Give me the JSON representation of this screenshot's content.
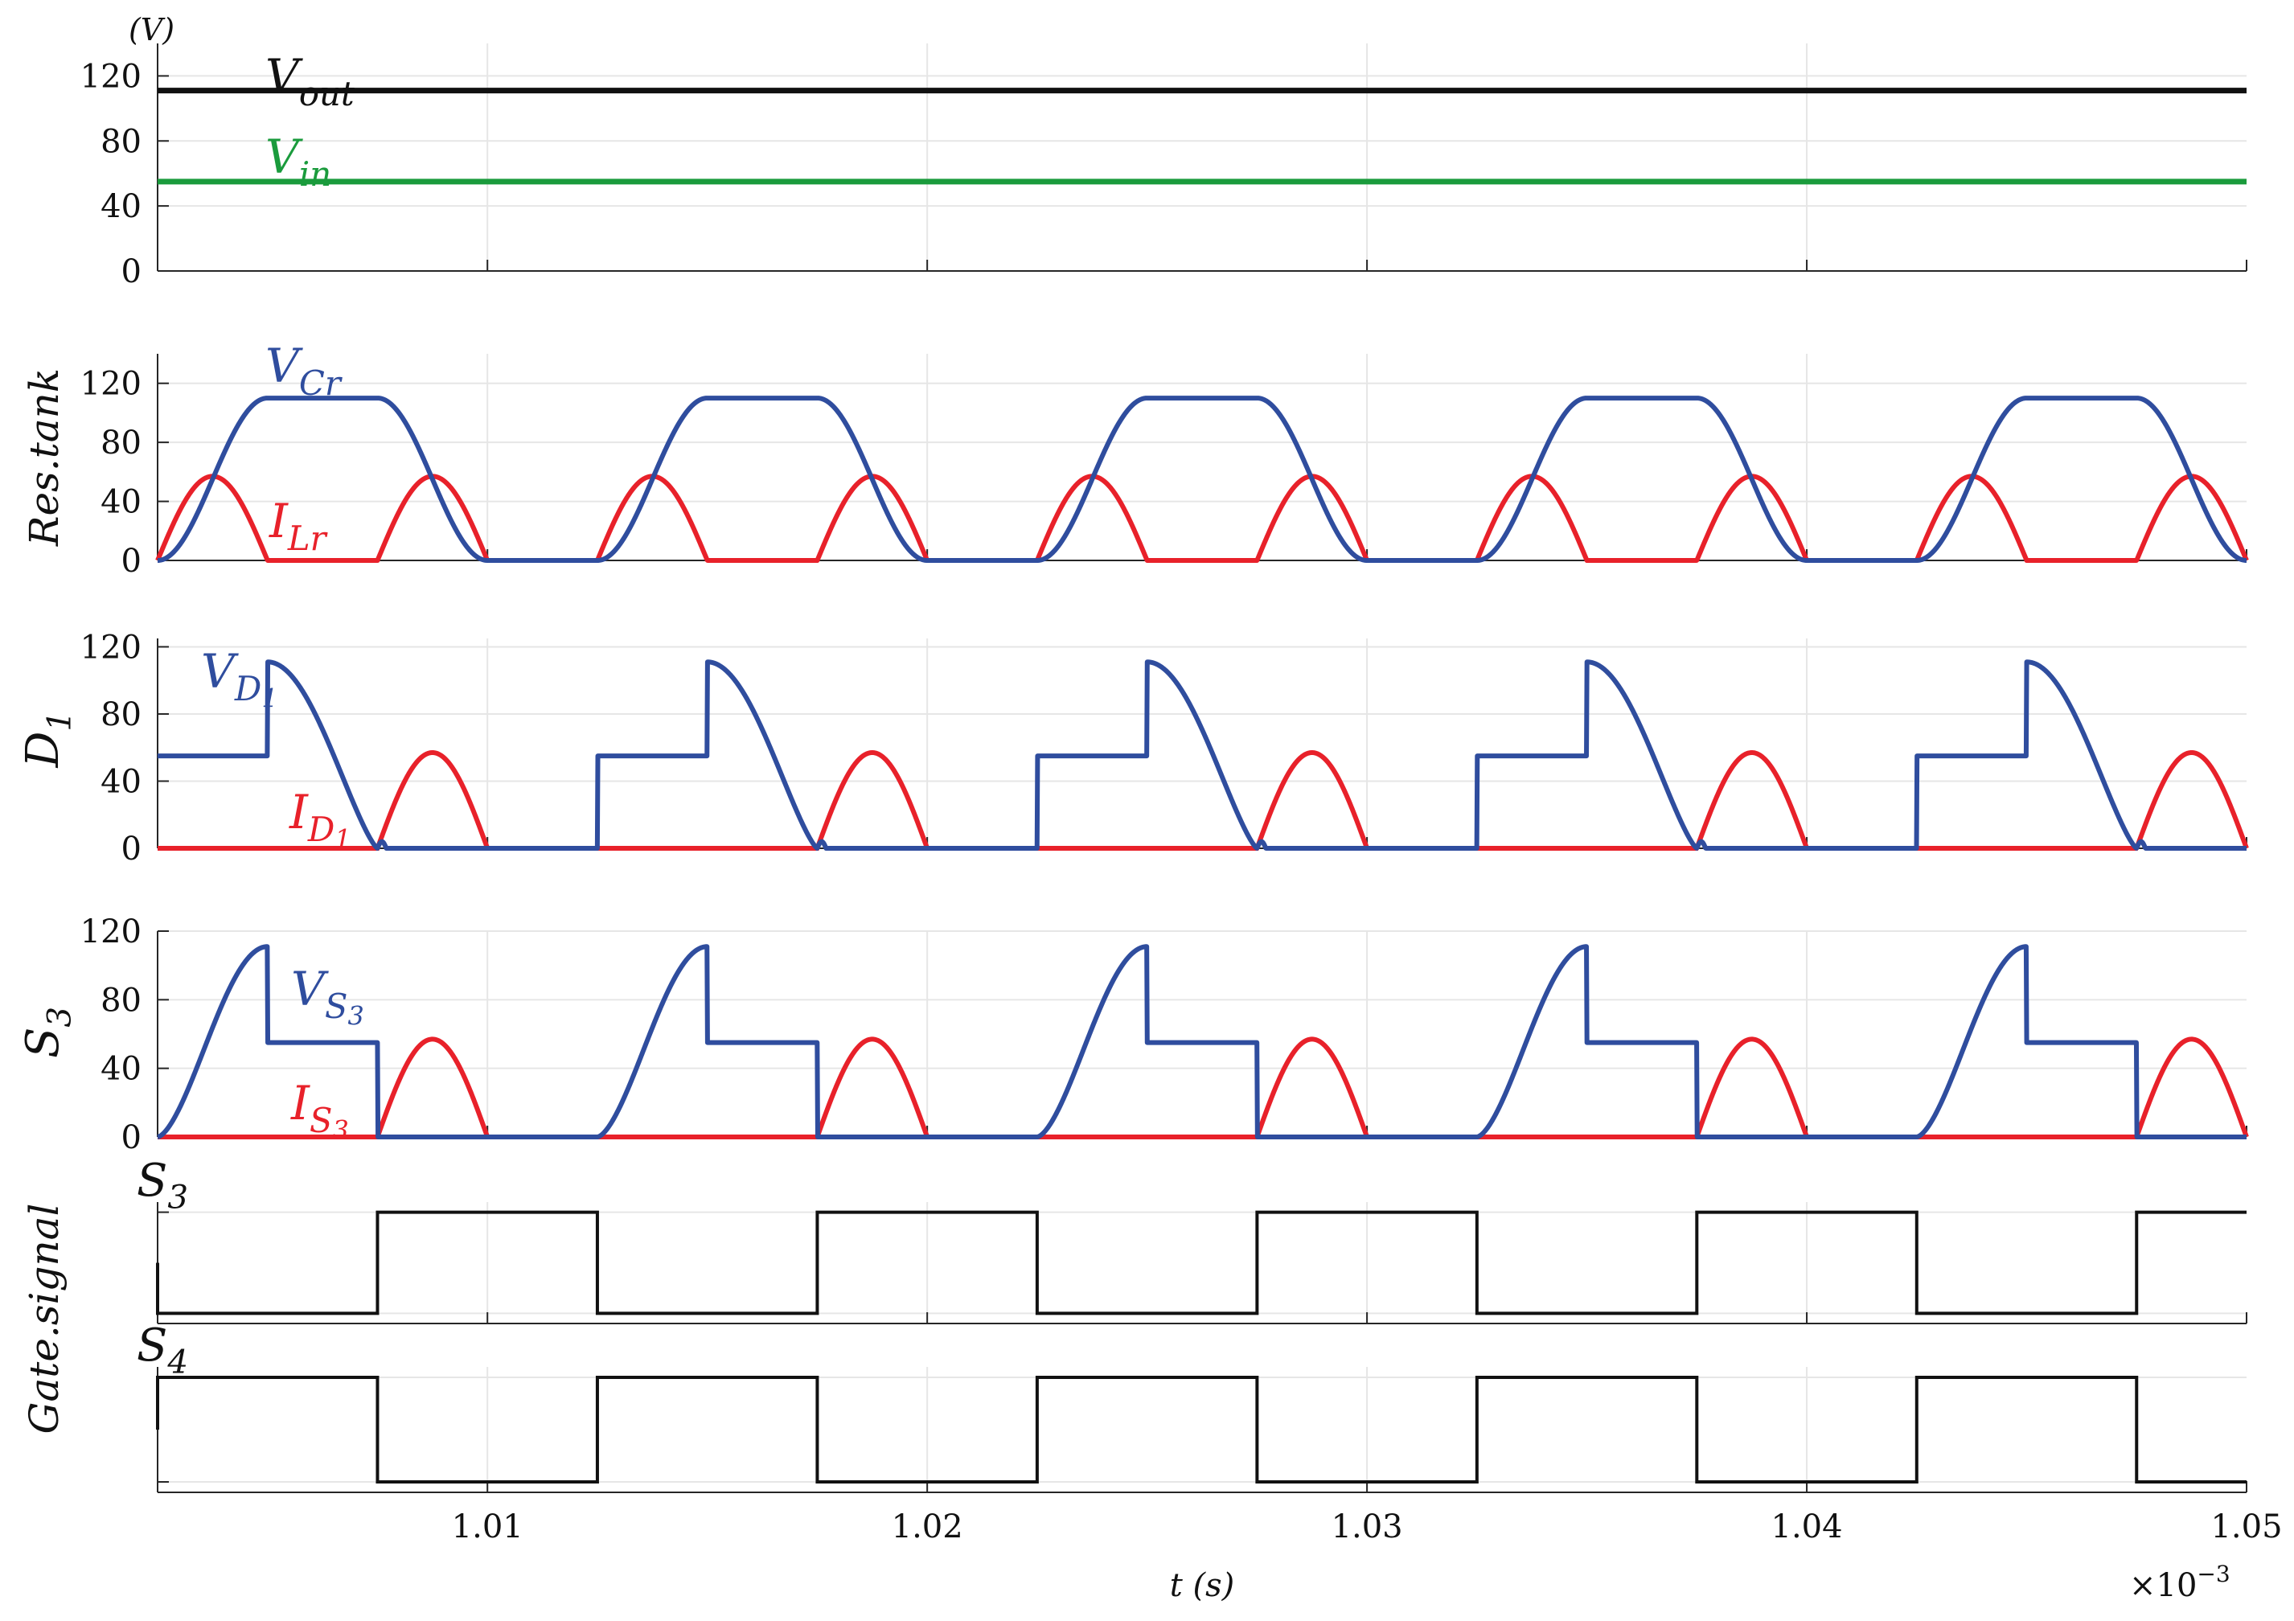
{
  "chart_data": {
    "type": "line",
    "x_axis": {
      "label": "t (s)",
      "multiplier_label": "×10",
      "multiplier_exponent": "−3",
      "range": [
        1.0025,
        1.05
      ],
      "ticks": [
        1.01,
        1.02,
        1.03,
        1.04,
        1.05
      ],
      "tick_labels": [
        "1.01",
        "1.02",
        "1.03",
        "1.04",
        "1.05"
      ]
    },
    "switching_period": 0.01,
    "colors": {
      "black": "#111111",
      "green": "#1a9b3c",
      "blue": "#2f4d9e",
      "red": "#e8212a"
    },
    "panels": [
      {
        "id": "voltages",
        "unit_label": "(V)",
        "ylabel": "",
        "ylim": [
          0,
          140
        ],
        "yticks": [
          0,
          40,
          80,
          120
        ],
        "series": [
          {
            "name": "Vout",
            "label_main": "V",
            "label_sub": "out",
            "color": "#111111",
            "constant": 111
          },
          {
            "name": "Vin",
            "label_main": "V",
            "label_sub": "in",
            "color": "#1a9b3c",
            "constant": 55
          }
        ]
      },
      {
        "id": "res-tank",
        "ylabel": "Res.tank",
        "ylim": [
          0,
          140
        ],
        "yticks": [
          0,
          40,
          80,
          120
        ],
        "series": [
          {
            "name": "VCr",
            "label_main": "V",
            "label_sub": "Cr",
            "color": "#2f4d9e",
            "peak": 110
          },
          {
            "name": "ILr",
            "label_main": "I",
            "label_sub": "Lr",
            "color": "#e8212a",
            "peak": 57
          }
        ]
      },
      {
        "id": "d1",
        "ylabel": "D1",
        "ylabel_main": "D",
        "ylabel_sub": "1",
        "ylim": [
          0,
          125
        ],
        "yticks": [
          0,
          40,
          80,
          120
        ],
        "series": [
          {
            "name": "VD1",
            "label_main": "V",
            "label_sub": "D",
            "label_subsub": "1",
            "color": "#2f4d9e",
            "peak": 111,
            "step": 55
          },
          {
            "name": "ID1",
            "label_main": "I",
            "label_sub": "D",
            "label_subsub": "1",
            "color": "#e8212a",
            "peak": 57
          }
        ]
      },
      {
        "id": "s3",
        "ylabel": "S3",
        "ylabel_main": "S",
        "ylabel_sub": "3",
        "ylim": [
          0,
          120
        ],
        "yticks": [
          0,
          40,
          80,
          120
        ],
        "series": [
          {
            "name": "VS3",
            "label_main": "V",
            "label_sub": "S",
            "label_subsub": "3",
            "color": "#2f4d9e",
            "peak": 111,
            "step": 55
          },
          {
            "name": "IS3",
            "label_main": "I",
            "label_sub": "S",
            "label_subsub": "3",
            "color": "#e8212a",
            "peak": 57
          }
        ]
      },
      {
        "id": "gate-s3",
        "ylabel": "Gate.signal",
        "title_main": "S",
        "title_sub": "3",
        "series": [
          {
            "name": "S3 gate",
            "color": "#111111",
            "high_windows": [
              [
                1.0075,
                1.0125
              ],
              [
                1.0175,
                1.0225
              ],
              [
                1.0275,
                1.0325
              ],
              [
                1.0375,
                1.0425
              ],
              [
                1.0475,
                1.05
              ]
            ]
          }
        ]
      },
      {
        "id": "gate-s4",
        "title_main": "S",
        "title_sub": "4",
        "series": [
          {
            "name": "S4 gate",
            "color": "#111111",
            "high_windows": [
              [
                1.0025,
                1.0075
              ],
              [
                1.0125,
                1.0175
              ],
              [
                1.0225,
                1.0275
              ],
              [
                1.0325,
                1.0375
              ],
              [
                1.0425,
                1.0475
              ]
            ]
          }
        ]
      }
    ]
  }
}
